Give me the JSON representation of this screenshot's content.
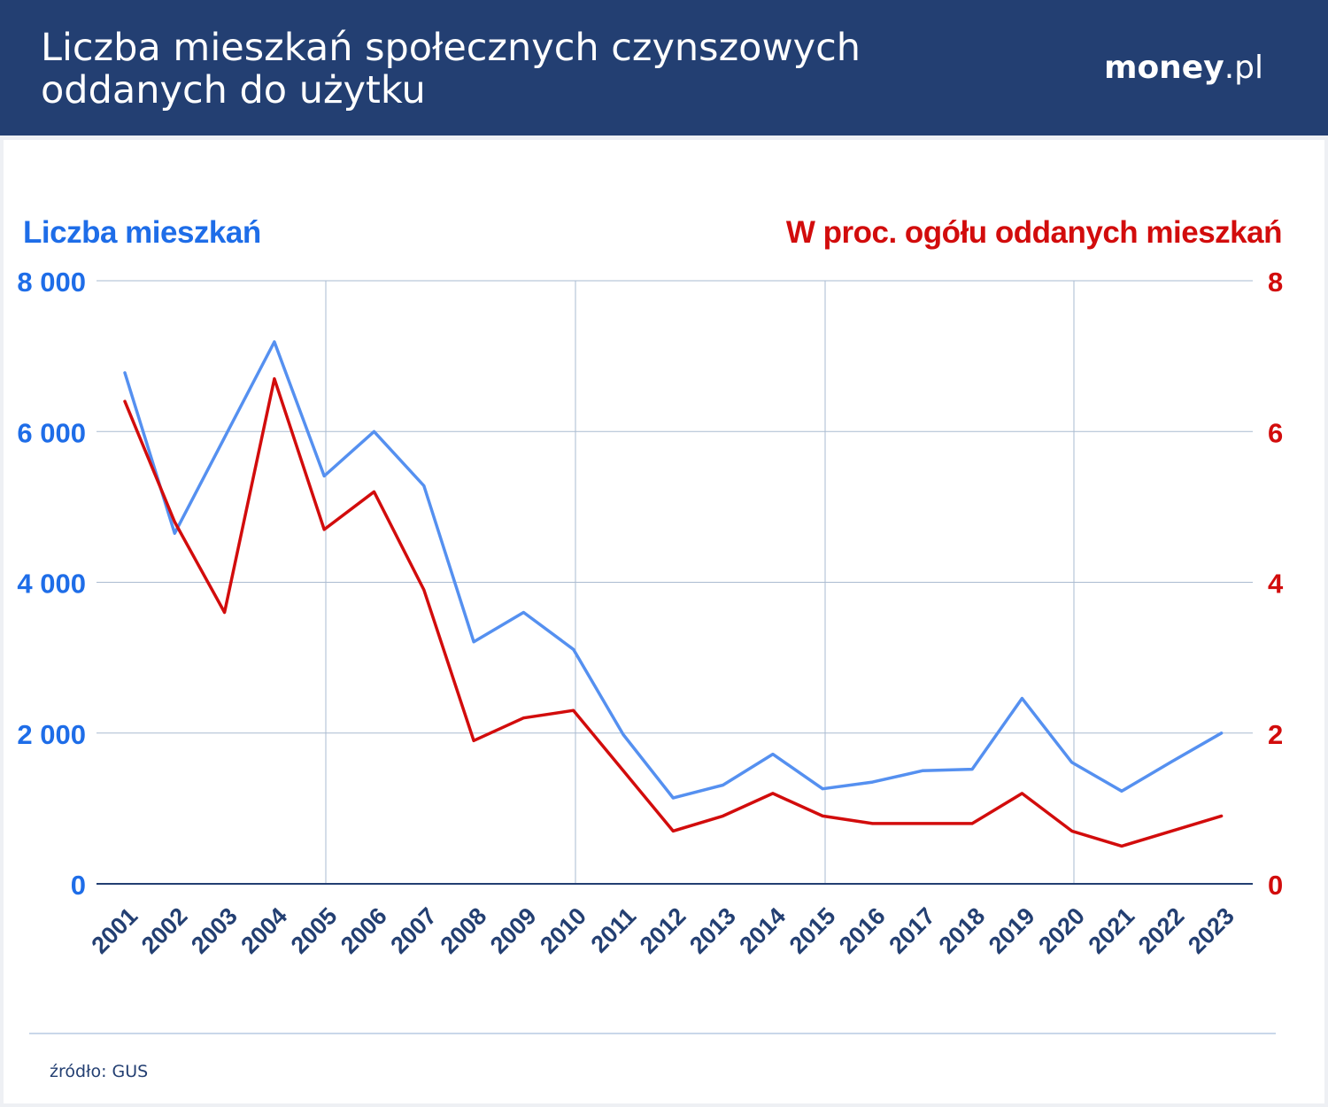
{
  "header": {
    "title": "Liczba mieszkań społecznych czynszowych oddanych do użytku",
    "brand_bold": "money",
    "brand_light": ".pl"
  },
  "source": "źródło: GUS",
  "colors": {
    "header_bg": "#233f72",
    "left_series": "#5590f0",
    "right_series": "#d20c0c",
    "left_axis_text": "#1e6de8",
    "x_tick_text": "#233f72"
  },
  "chart_data": {
    "type": "line",
    "x": [
      "2001",
      "2002",
      "2003",
      "2004",
      "2005",
      "2006",
      "2007",
      "2008",
      "2009",
      "2010",
      "2011",
      "2012",
      "2013",
      "2014",
      "2015",
      "2016",
      "2017",
      "2018",
      "2019",
      "2020",
      "2021",
      "2022",
      "2023"
    ],
    "y_left": {
      "label": "Liczba mieszkań",
      "ylim": [
        0,
        8000
      ],
      "ticks": [
        0,
        2000,
        4000,
        6000,
        8000
      ],
      "tick_labels": [
        "0",
        "2 000",
        "4 000",
        "6 000",
        "8 000"
      ]
    },
    "y_right": {
      "label": "W proc. ogółu oddanych mieszkań",
      "ylim": [
        0,
        8
      ],
      "ticks": [
        0,
        2,
        4,
        6,
        8
      ],
      "tick_labels": [
        "0",
        "2",
        "4",
        "6",
        "8"
      ]
    },
    "series": [
      {
        "axis": "left",
        "color": "#5590f0",
        "values": [
          6780,
          4650,
          5920,
          7190,
          5410,
          6000,
          5280,
          3210,
          3600,
          3110,
          1980,
          1140,
          1310,
          1720,
          1260,
          1350,
          1500,
          1520,
          2460,
          1610,
          1230,
          1620,
          2000
        ]
      },
      {
        "axis": "right",
        "color": "#d20c0c",
        "values": [
          6.4,
          4.8,
          3.6,
          6.7,
          4.7,
          5.2,
          3.9,
          1.9,
          2.2,
          2.3,
          1.5,
          0.7,
          0.9,
          1.2,
          0.9,
          0.8,
          0.8,
          0.8,
          1.2,
          0.7,
          0.5,
          0.7,
          0.9
        ]
      }
    ],
    "grid": {
      "horizontal": true,
      "vertical": true
    }
  }
}
